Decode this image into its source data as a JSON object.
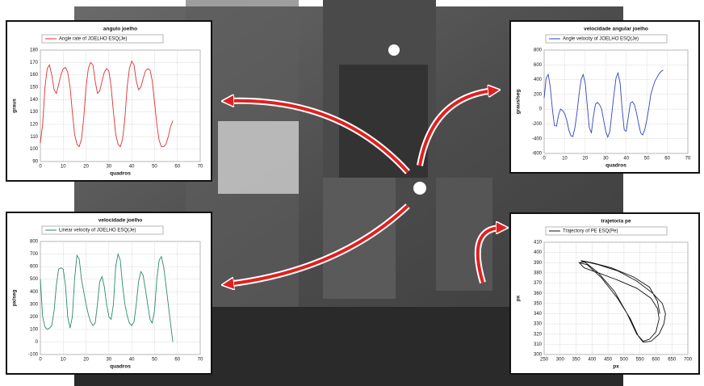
{
  "chart_data": [
    {
      "type": "line",
      "title": "angulo joelho",
      "xlabel": "quadros",
      "ylabel": "graus",
      "x": [
        0,
        1,
        2,
        3,
        4,
        5,
        6,
        7,
        8,
        9,
        10,
        11,
        12,
        13,
        14,
        15,
        16,
        17,
        18,
        19,
        20,
        21,
        22,
        23,
        24,
        25,
        26,
        27,
        28,
        29,
        30,
        31,
        32,
        33,
        34,
        35,
        36,
        37,
        38,
        39,
        40,
        41,
        42,
        43,
        44,
        45,
        46,
        47,
        48,
        49,
        50,
        51,
        52,
        53,
        54,
        55,
        56,
        57,
        58
      ],
      "series": [
        {
          "name": "Angle rate of JOELHO ESQ(Je)",
          "color": "#e03030",
          "values": [
            105,
            120,
            150,
            165,
            168,
            160,
            148,
            145,
            152,
            160,
            165,
            166,
            162,
            150,
            130,
            112,
            104,
            102,
            108,
            125,
            150,
            165,
            170,
            168,
            155,
            145,
            147,
            155,
            162,
            165,
            163,
            150,
            130,
            112,
            104,
            102,
            108,
            125,
            150,
            165,
            171,
            168,
            155,
            148,
            150,
            157,
            163,
            165,
            164,
            155,
            138,
            120,
            107,
            102,
            102,
            104,
            110,
            118,
            123
          ]
        }
      ],
      "xlim": [
        0,
        70
      ],
      "ylim": [
        90,
        180
      ],
      "xticks": [
        0,
        10,
        20,
        30,
        40,
        50,
        60,
        70
      ],
      "yticks": [
        90,
        100,
        110,
        120,
        130,
        140,
        150,
        160,
        170,
        180
      ],
      "grid": true
    },
    {
      "type": "line",
      "title": "velocidade angular joelho",
      "xlabel": "quadros",
      "ylabel": "graus/seg",
      "x": [
        0,
        1,
        2,
        3,
        4,
        5,
        6,
        7,
        8,
        9,
        10,
        11,
        12,
        13,
        14,
        15,
        16,
        17,
        18,
        19,
        20,
        21,
        22,
        23,
        24,
        25,
        26,
        27,
        28,
        29,
        30,
        31,
        32,
        33,
        34,
        35,
        36,
        37,
        38,
        39,
        40,
        41,
        42,
        43,
        44,
        45,
        46,
        47,
        48,
        49,
        50,
        51,
        52,
        53,
        54,
        55,
        56,
        57,
        58
      ],
      "series": [
        {
          "name": "Angle velocity of JOELHO ESQ(Je)",
          "color": "#3344bb",
          "values": [
            150,
            420,
            470,
            300,
            0,
            -220,
            -230,
            -80,
            0,
            -20,
            -60,
            -150,
            -280,
            -360,
            -370,
            -250,
            -50,
            200,
            400,
            470,
            350,
            50,
            -250,
            -320,
            -100,
            70,
            90,
            60,
            0,
            -150,
            -300,
            -380,
            -300,
            -50,
            200,
            420,
            490,
            350,
            0,
            -280,
            -300,
            -100,
            80,
            100,
            60,
            -50,
            -200,
            -320,
            -350,
            -280,
            -150,
            20,
            200,
            300,
            380,
            430,
            480,
            510,
            530
          ]
        }
      ],
      "xlim": [
        0,
        70
      ],
      "ylim": [
        -600,
        800
      ],
      "xticks": [
        0,
        10,
        20,
        30,
        40,
        50,
        60,
        70
      ],
      "yticks": [
        -600,
        -400,
        -200,
        0,
        200,
        400,
        600,
        800
      ],
      "grid": true
    },
    {
      "type": "line",
      "title": "velocidade joelho",
      "xlabel": "quadros",
      "ylabel": "px/seg",
      "x": [
        0,
        1,
        2,
        3,
        4,
        5,
        6,
        7,
        8,
        9,
        10,
        11,
        12,
        13,
        14,
        15,
        16,
        17,
        18,
        19,
        20,
        21,
        22,
        23,
        24,
        25,
        26,
        27,
        28,
        29,
        30,
        31,
        32,
        33,
        34,
        35,
        36,
        37,
        38,
        39,
        40,
        41,
        42,
        43,
        44,
        45,
        46,
        47,
        48,
        49,
        50,
        51,
        52,
        53,
        54,
        55,
        56,
        57,
        58
      ],
      "series": [
        {
          "name": "Linear velocity of JOELHO ESQ(Je)",
          "color": "#2a8a6a",
          "values": [
            500,
            200,
            120,
            100,
            110,
            130,
            250,
            450,
            580,
            590,
            580,
            450,
            200,
            110,
            200,
            500,
            690,
            660,
            500,
            400,
            300,
            220,
            160,
            130,
            150,
            300,
            480,
            520,
            440,
            300,
            200,
            180,
            300,
            600,
            700,
            650,
            450,
            300,
            210,
            150,
            130,
            160,
            300,
            480,
            560,
            530,
            420,
            300,
            180,
            150,
            250,
            500,
            650,
            680,
            600,
            450,
            300,
            150,
            0
          ]
        }
      ],
      "xlim": [
        0,
        70
      ],
      "ylim": [
        -100,
        800
      ],
      "xticks": [
        0,
        10,
        20,
        30,
        40,
        50,
        60,
        70
      ],
      "yticks": [
        -100,
        0,
        100,
        200,
        300,
        400,
        500,
        600,
        700,
        800
      ],
      "grid": true
    },
    {
      "type": "line",
      "title": "trajetoria pe",
      "xlabel": "px",
      "ylabel": "px",
      "x": [
        360,
        380,
        420,
        480,
        540,
        590,
        620,
        630,
        625,
        610,
        585,
        560,
        545,
        520,
        480,
        430,
        385,
        360,
        375,
        420,
        480,
        540,
        585,
        605,
        610,
        600,
        580,
        560,
        540,
        510,
        470,
        420,
        380,
        365,
        400,
        460,
        530,
        580,
        605,
        612
      ],
      "series": [
        {
          "name": "Trajectory of PE ESQ(Pe)",
          "color": "#111111",
          "values": [
            390,
            391,
            388,
            382,
            372,
            360,
            350,
            340,
            330,
            320,
            313,
            312,
            318,
            335,
            355,
            375,
            388,
            390,
            385,
            380,
            373,
            365,
            355,
            345,
            335,
            322,
            315,
            313,
            320,
            340,
            362,
            380,
            390,
            392,
            390,
            385,
            376,
            366,
            352,
            340
          ]
        }
      ],
      "xlim": [
        250,
        700
      ],
      "ylim": [
        300,
        410
      ],
      "xticks": [
        250,
        300,
        350,
        400,
        450,
        500,
        550,
        600,
        650,
        700
      ],
      "yticks": [
        300,
        310,
        320,
        330,
        340,
        350,
        360,
        370,
        380,
        390,
        400,
        410
      ],
      "grid": true
    }
  ]
}
